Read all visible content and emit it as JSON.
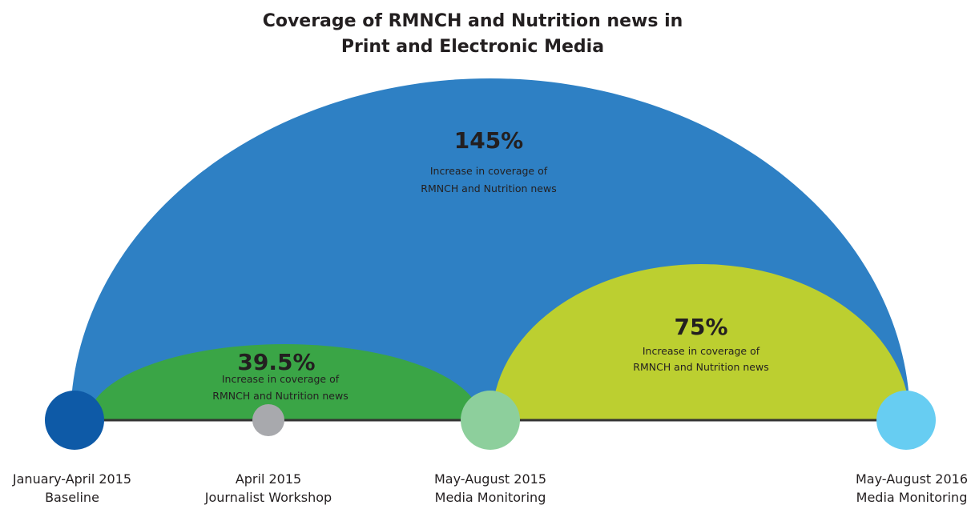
{
  "title": [
    "Coverage of RMNCH and Nutrition news in",
    "Print and Electronic Media"
  ],
  "arcs": [
    {
      "label": "145%",
      "caption": [
        "Increase in coverage of",
        "RMNCH and Nutrition news"
      ]
    },
    {
      "label": "39.5%",
      "caption": [
        "Increase in coverage of",
        "RMNCH and Nutrition news"
      ]
    },
    {
      "label": "75%",
      "caption": [
        "Increase in coverage of",
        "RMNCH and Nutrition news"
      ]
    }
  ],
  "timeline": [
    {
      "period": "January-April 2015",
      "event": "Baseline"
    },
    {
      "period": "April 2015",
      "event": "Journalist Workshop"
    },
    {
      "period": "May-August 2015",
      "event": "Media Monitoring"
    },
    {
      "period": "May-August 2016",
      "event": "Media Monitoring"
    }
  ]
}
